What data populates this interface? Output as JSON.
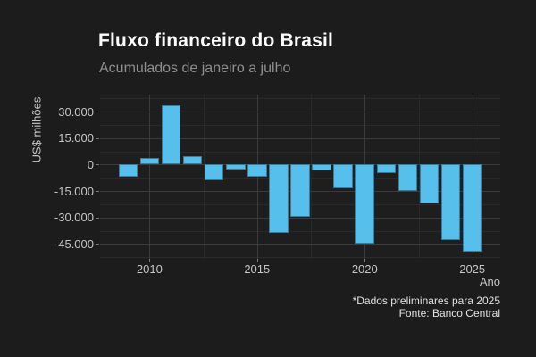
{
  "header": {
    "title": "Fluxo financeiro do Brasil",
    "subtitle": "Acumulados de janeiro a julho"
  },
  "caption": {
    "note": "*Dados preliminares para 2025",
    "source": "Fonte: Banco Central"
  },
  "chart_data": {
    "type": "bar",
    "title": "Fluxo financeiro do Brasil",
    "subtitle": "Acumulados de janeiro a julho",
    "xlabel": "Ano",
    "ylabel": "US$ milhões",
    "categories": [
      2009,
      2010,
      2011,
      2012,
      2013,
      2014,
      2015,
      2016,
      2017,
      2018,
      2019,
      2020,
      2021,
      2022,
      2023,
      2024,
      2025
    ],
    "values": [
      -6800,
      3800,
      33800,
      4500,
      -8900,
      -3000,
      -7200,
      -38800,
      -29900,
      -3600,
      -13500,
      -44800,
      -5000,
      -14900,
      -22200,
      -42900,
      -49200
    ],
    "ylim": [
      -53400,
      39600
    ],
    "xlim": [
      2007.7,
      2026.3
    ],
    "y_ticks": [
      {
        "value": 30000,
        "label": "30.000"
      },
      {
        "value": 15000,
        "label": "15.000"
      },
      {
        "value": 0,
        "label": "0"
      },
      {
        "value": -15000,
        "label": "-15.000"
      },
      {
        "value": -30000,
        "label": "-30.000"
      },
      {
        "value": -45000,
        "label": "-45.000"
      }
    ],
    "x_ticks": [
      {
        "value": 2010,
        "label": "2010"
      },
      {
        "value": 2015,
        "label": "2015"
      },
      {
        "value": 2020,
        "label": "2020"
      },
      {
        "value": 2025,
        "label": "2025"
      }
    ],
    "grid": "major+minor, horizontal and vertical",
    "legend": "none",
    "annotations": [
      "*Dados preliminares para 2025",
      "Fonte: Banco Central"
    ]
  },
  "colors": {
    "background": "#1c1c1c",
    "bar_fill": "#56bfec",
    "grid_major": "#3b3b3b",
    "grid_minor": "#2a2a2a",
    "title_text": "#ffffff",
    "subtitle_text": "#8f8f8f",
    "axis_text": "#c6c6c6",
    "caption_text": "#e2e2e2"
  }
}
